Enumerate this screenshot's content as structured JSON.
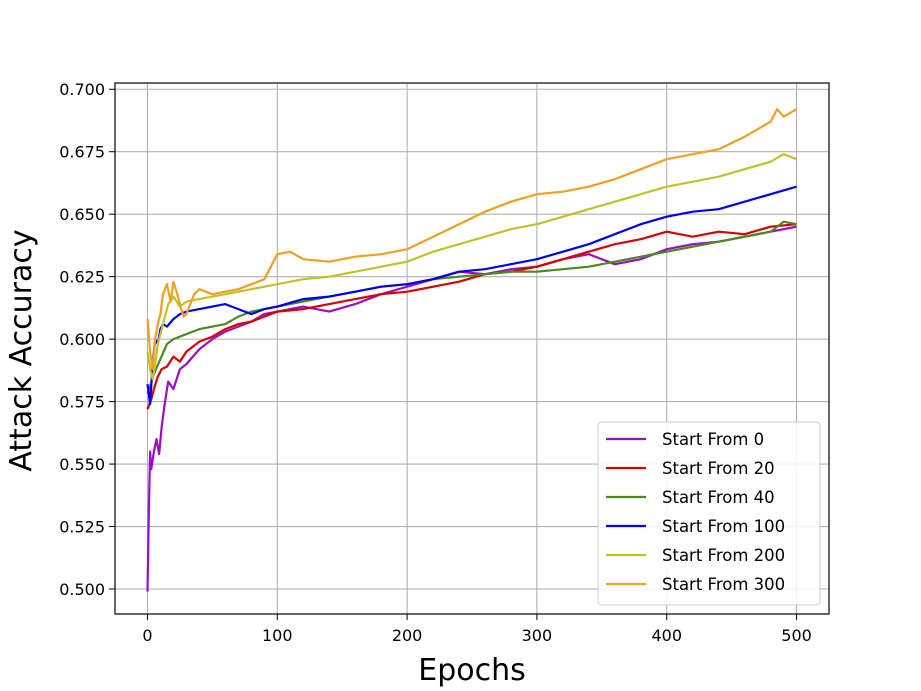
{
  "chart_data": {
    "type": "line",
    "title": "",
    "xlabel": "Epochs",
    "ylabel": "Attack Accuracy",
    "xlim": [
      -25,
      525
    ],
    "ylim": [
      0.49,
      0.7025
    ],
    "x_ticks": [
      0,
      100,
      200,
      300,
      400,
      500
    ],
    "y_ticks": [
      0.5,
      0.525,
      0.55,
      0.575,
      0.6,
      0.625,
      0.65,
      0.675,
      0.7
    ],
    "y_tick_labels": [
      "0.500",
      "0.525",
      "0.550",
      "0.575",
      "0.600",
      "0.625",
      "0.650",
      "0.675",
      "0.700"
    ],
    "grid": true,
    "legend_position": "lower right",
    "series": [
      {
        "name": "Start From 0",
        "color": "#9a0ec6",
        "x": [
          0,
          1,
          2,
          3,
          5,
          7,
          9,
          11,
          13,
          16,
          20,
          25,
          30,
          40,
          50,
          60,
          70,
          80,
          90,
          100,
          120,
          140,
          160,
          180,
          200,
          220,
          240,
          260,
          280,
          300,
          320,
          340,
          360,
          380,
          400,
          420,
          440,
          460,
          480,
          500
        ],
        "y": [
          0.499,
          0.53,
          0.555,
          0.548,
          0.555,
          0.56,
          0.554,
          0.565,
          0.573,
          0.583,
          0.58,
          0.588,
          0.59,
          0.596,
          0.6,
          0.603,
          0.605,
          0.607,
          0.61,
          0.611,
          0.613,
          0.611,
          0.614,
          0.618,
          0.621,
          0.624,
          0.627,
          0.626,
          0.628,
          0.629,
          0.632,
          0.634,
          0.63,
          0.632,
          0.636,
          0.638,
          0.639,
          0.641,
          0.643,
          0.645
        ]
      },
      {
        "name": "Start From 20",
        "color": "#d60000",
        "x": [
          0,
          3,
          5,
          8,
          11,
          15,
          20,
          25,
          30,
          40,
          50,
          60,
          70,
          80,
          90,
          100,
          120,
          140,
          160,
          180,
          200,
          220,
          240,
          260,
          280,
          300,
          320,
          340,
          360,
          380,
          400,
          420,
          440,
          460,
          480,
          500
        ],
        "y": [
          0.572,
          0.576,
          0.58,
          0.585,
          0.588,
          0.589,
          0.593,
          0.591,
          0.595,
          0.599,
          0.601,
          0.604,
          0.606,
          0.607,
          0.609,
          0.611,
          0.612,
          0.614,
          0.616,
          0.618,
          0.619,
          0.621,
          0.623,
          0.626,
          0.627,
          0.629,
          0.632,
          0.635,
          0.638,
          0.64,
          0.643,
          0.641,
          0.643,
          0.642,
          0.645,
          0.646
        ]
      },
      {
        "name": "Start From 40",
        "color": "#4a8a1c",
        "x": [
          0,
          5,
          10,
          15,
          20,
          30,
          40,
          50,
          60,
          70,
          80,
          100,
          120,
          140,
          160,
          180,
          200,
          220,
          240,
          260,
          280,
          300,
          320,
          340,
          360,
          380,
          400,
          420,
          440,
          460,
          480,
          490,
          500
        ],
        "y": [
          0.578,
          0.586,
          0.592,
          0.598,
          0.6,
          0.602,
          0.604,
          0.605,
          0.606,
          0.609,
          0.611,
          0.613,
          0.615,
          0.617,
          0.619,
          0.621,
          0.622,
          0.624,
          0.625,
          0.626,
          0.627,
          0.627,
          0.628,
          0.629,
          0.631,
          0.633,
          0.635,
          0.637,
          0.639,
          0.641,
          0.643,
          0.647,
          0.646
        ]
      },
      {
        "name": "Start From 100",
        "color": "#0000ee",
        "x": [
          0,
          2,
          4,
          6,
          8,
          10,
          12,
          15,
          20,
          25,
          30,
          40,
          50,
          60,
          70,
          80,
          90,
          100,
          120,
          140,
          160,
          180,
          200,
          220,
          240,
          260,
          280,
          300,
          320,
          340,
          360,
          380,
          400,
          420,
          440,
          460,
          480,
          500
        ],
        "y": [
          0.582,
          0.574,
          0.59,
          0.6,
          0.598,
          0.604,
          0.606,
          0.605,
          0.608,
          0.61,
          0.611,
          0.612,
          0.613,
          0.614,
          0.612,
          0.61,
          0.612,
          0.613,
          0.616,
          0.617,
          0.619,
          0.621,
          0.622,
          0.624,
          0.627,
          0.628,
          0.63,
          0.632,
          0.635,
          0.638,
          0.642,
          0.646,
          0.649,
          0.651,
          0.652,
          0.655,
          0.658,
          0.661
        ]
      },
      {
        "name": "Start From 200",
        "color": "#c0c22a",
        "x": [
          0,
          2,
          4,
          6,
          8,
          10,
          13,
          16,
          20,
          25,
          30,
          40,
          50,
          60,
          70,
          80,
          90,
          100,
          120,
          140,
          160,
          180,
          200,
          220,
          240,
          260,
          280,
          300,
          320,
          340,
          360,
          380,
          400,
          420,
          440,
          460,
          480,
          490,
          500
        ],
        "y": [
          0.595,
          0.588,
          0.584,
          0.59,
          0.598,
          0.602,
          0.608,
          0.614,
          0.617,
          0.613,
          0.615,
          0.616,
          0.617,
          0.618,
          0.619,
          0.62,
          0.621,
          0.622,
          0.624,
          0.625,
          0.627,
          0.629,
          0.631,
          0.635,
          0.638,
          0.641,
          0.644,
          0.646,
          0.649,
          0.652,
          0.655,
          0.658,
          0.661,
          0.663,
          0.665,
          0.668,
          0.671,
          0.674,
          0.672
        ]
      },
      {
        "name": "Start From 300",
        "color": "#f0a020",
        "x": [
          0,
          2,
          4,
          6,
          8,
          10,
          12,
          15,
          18,
          20,
          23,
          26,
          28,
          30,
          33,
          36,
          40,
          50,
          60,
          70,
          80,
          90,
          100,
          110,
          120,
          140,
          160,
          180,
          200,
          220,
          240,
          260,
          280,
          300,
          320,
          340,
          360,
          380,
          400,
          420,
          440,
          460,
          470,
          480,
          485,
          490,
          500
        ],
        "y": [
          0.608,
          0.595,
          0.588,
          0.6,
          0.606,
          0.61,
          0.618,
          0.622,
          0.615,
          0.623,
          0.618,
          0.612,
          0.609,
          0.61,
          0.614,
          0.618,
          0.62,
          0.618,
          0.619,
          0.62,
          0.622,
          0.624,
          0.634,
          0.635,
          0.632,
          0.631,
          0.633,
          0.634,
          0.636,
          0.641,
          0.646,
          0.651,
          0.655,
          0.658,
          0.659,
          0.661,
          0.664,
          0.668,
          0.672,
          0.674,
          0.676,
          0.681,
          0.684,
          0.687,
          0.692,
          0.689,
          0.692
        ]
      }
    ]
  }
}
